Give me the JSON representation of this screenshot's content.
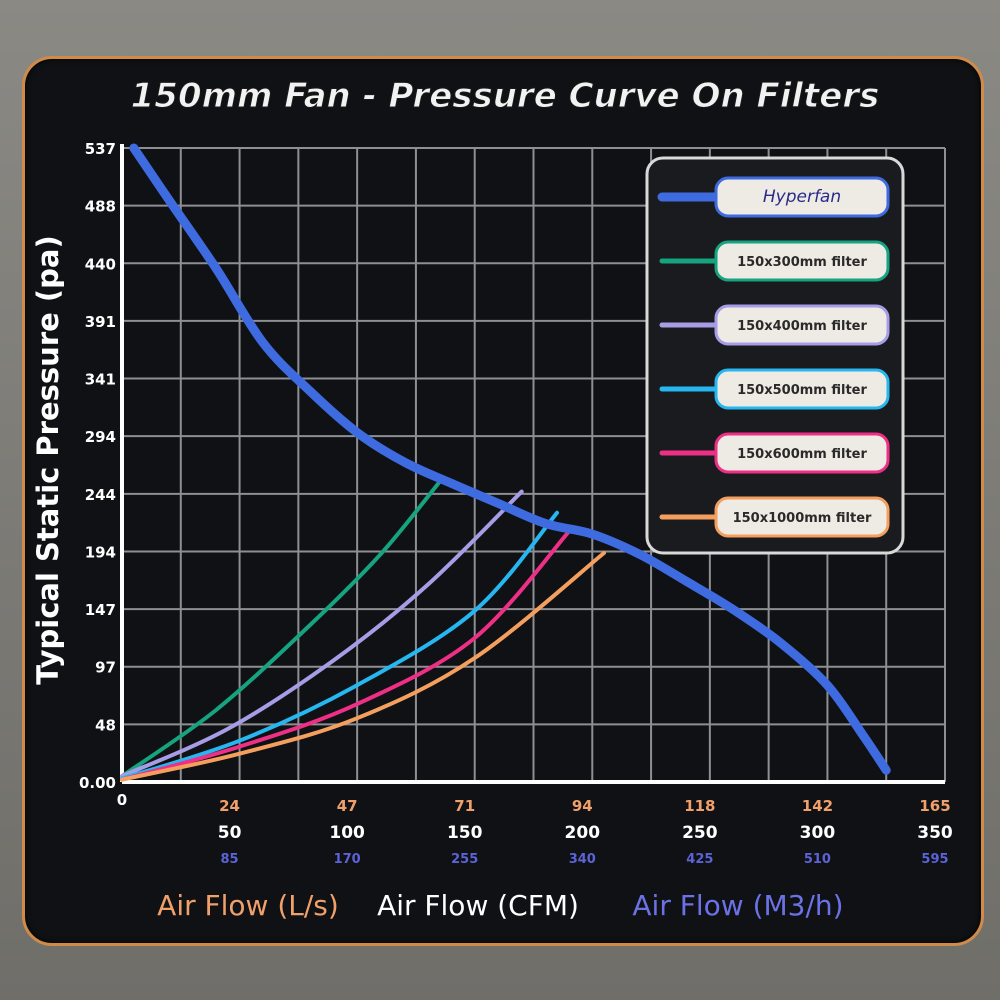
{
  "chart_data": {
    "type": "line",
    "title": "150mm Fan - Pressure Curve On Filters",
    "ylabel": "Typical Static Pressure  (pa)",
    "y_ticks": [
      "537",
      "488",
      "440",
      "391",
      "341",
      "294",
      "244",
      "194",
      "147",
      "97",
      "48",
      "0.00"
    ],
    "x_origin_label": "0",
    "x_ticks_ls": [
      "24",
      "47",
      "71",
      "94",
      "118",
      "142",
      "165"
    ],
    "x_ticks_cfm": [
      "50",
      "100",
      "150",
      "200",
      "250",
      "300",
      "350"
    ],
    "x_ticks_m3h": [
      "85",
      "170",
      "255",
      "340",
      "425",
      "510",
      "595"
    ],
    "xlabels": {
      "ls": "Air Flow (L/s)",
      "cfm": "Air Flow (CFM)",
      "m3h": "Air Flow (M3/h)"
    },
    "x_unit": "CFM",
    "xlim": [
      0,
      350
    ],
    "ylim": [
      0,
      537
    ],
    "grid": true,
    "legend_position": "top-right",
    "logo_text": "Hyperfan",
    "series": [
      {
        "name": "Hyperfan",
        "color": "#3f6be0",
        "points": [
          [
            5,
            537
          ],
          [
            20,
            493
          ],
          [
            40,
            435
          ],
          [
            60,
            372
          ],
          [
            80,
            331
          ],
          [
            100,
            296
          ],
          [
            120,
            271
          ],
          [
            140,
            253
          ],
          [
            160,
            236
          ],
          [
            180,
            219
          ],
          [
            200,
            210
          ],
          [
            220,
            193
          ],
          [
            240,
            170
          ],
          [
            260,
            146
          ],
          [
            280,
            118
          ],
          [
            300,
            82
          ],
          [
            315,
            40
          ],
          [
            325,
            10
          ]
        ]
      },
      {
        "name": "150x300mm filter",
        "color": "#16a37f",
        "points": [
          [
            0,
            5
          ],
          [
            40,
            61
          ],
          [
            80,
            133
          ],
          [
            110,
            193
          ],
          [
            135,
            254
          ]
        ]
      },
      {
        "name": "150x400mm filter",
        "color": "#a79de6",
        "points": [
          [
            0,
            5
          ],
          [
            45,
            45
          ],
          [
            90,
            103
          ],
          [
            130,
            167
          ],
          [
            170,
            246
          ]
        ]
      },
      {
        "name": "150x500mm filter",
        "color": "#26b6f0",
        "points": [
          [
            0,
            3
          ],
          [
            50,
            35
          ],
          [
            100,
            82
          ],
          [
            150,
            145
          ],
          [
            185,
            228
          ]
        ]
      },
      {
        "name": "150x600mm filter",
        "color": "#ee2f86",
        "points": [
          [
            0,
            2
          ],
          [
            50,
            30
          ],
          [
            100,
            66
          ],
          [
            150,
            122
          ],
          [
            190,
            212
          ]
        ]
      },
      {
        "name": "150x1000mm filter",
        "color": "#f59f5e",
        "points": [
          [
            0,
            2
          ],
          [
            50,
            24
          ],
          [
            100,
            54
          ],
          [
            150,
            105
          ],
          [
            205,
            194
          ]
        ]
      }
    ]
  }
}
